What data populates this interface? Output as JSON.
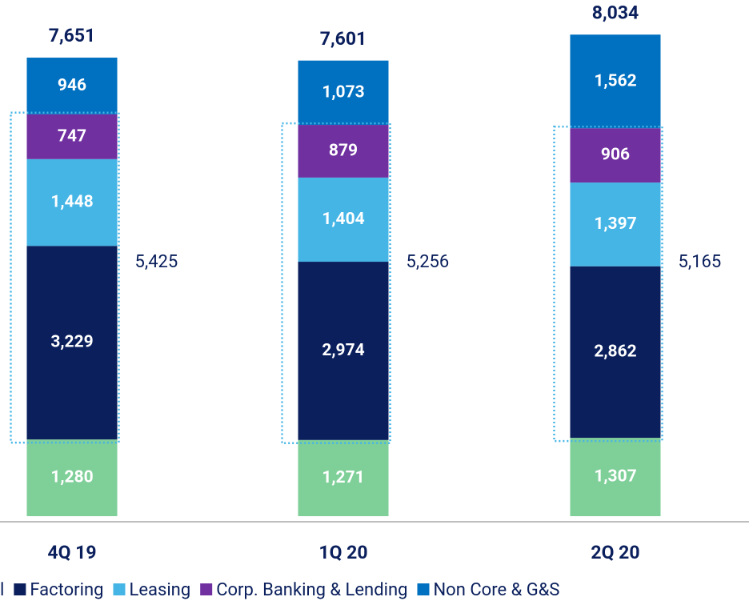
{
  "chart_data": {
    "type": "bar",
    "stacked": true,
    "categories": [
      "4Q 19",
      "1Q 20",
      "2Q 20"
    ],
    "series": [
      {
        "name": "l",
        "color": "#7fcf99",
        "values": [
          1280,
          1271,
          1307
        ],
        "value_labels": [
          "1,280",
          "1,271",
          "1,307"
        ]
      },
      {
        "name": "Factoring",
        "color": "#0a1f5c",
        "values": [
          3229,
          2974,
          2862
        ],
        "value_labels": [
          "3,229",
          "2,974",
          "2,862"
        ]
      },
      {
        "name": "Leasing",
        "color": "#45b5e6",
        "values": [
          1448,
          1404,
          1397
        ],
        "value_labels": [
          "1,448",
          "1,404",
          "1,397"
        ]
      },
      {
        "name": "Corp. Banking & Lending",
        "color": "#7030a0",
        "values": [
          747,
          879,
          906
        ],
        "value_labels": [
          "747",
          "879",
          "906"
        ]
      },
      {
        "name": "Non Core & G&S",
        "color": "#0070c0",
        "values": [
          946,
          1073,
          1562
        ],
        "value_labels": [
          "946",
          "1,073",
          "1,562"
        ]
      }
    ],
    "totals": [
      7651,
      7601,
      8034
    ],
    "total_labels": [
      "7,651",
      "7,601",
      "8,034"
    ],
    "subtotals": [
      5425,
      5256,
      5165
    ],
    "subtotal_labels": [
      "5,425",
      "5,256",
      "5,165"
    ]
  }
}
